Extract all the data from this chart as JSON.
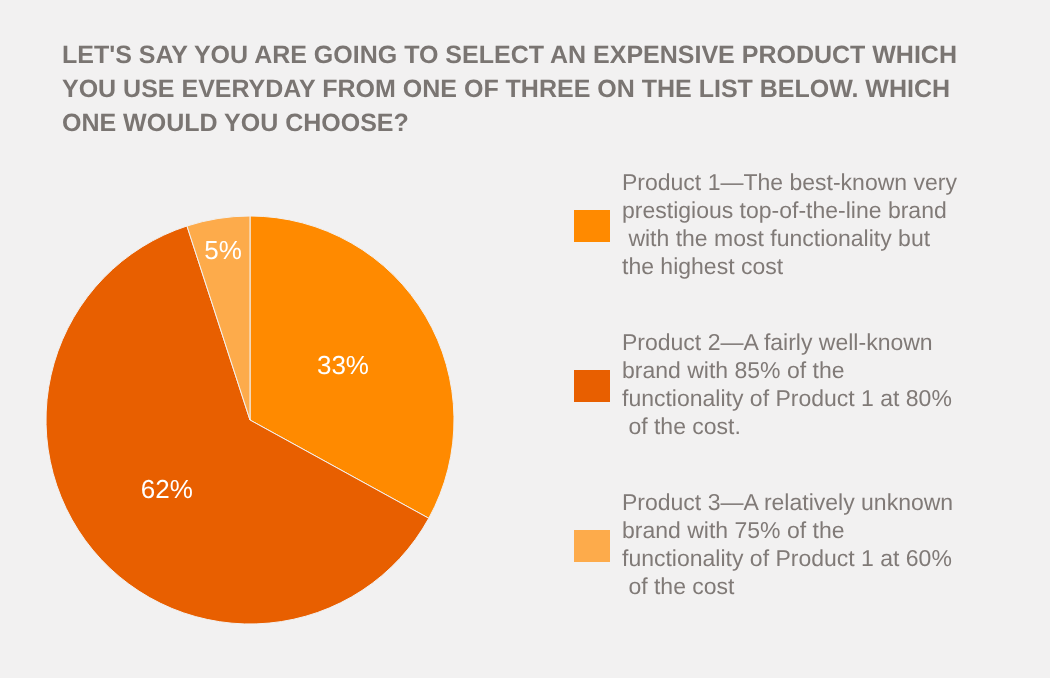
{
  "chart_data": {
    "type": "pie",
    "title": "LET'S SAY YOU ARE GOING TO SELECT AN EXPENSIVE PRODUCT WHICH YOU USE EVERYDAY FROM ONE OF THREE ON THE LIST BELOW. WHICH ONE WOULD YOU CHOOSE?",
    "categories": [
      "Product 1—The best-known very prestigious top-of-the-line brand with the most functionality but the highest cost",
      "Product 2—A fairly well-known brand with 85% of the functionality of Product 1 at 80% of the cost.",
      "Product 3—A relatively unknown brand with 75% of the functionality of Product 1 at 60% of the cost"
    ],
    "values": [
      33,
      62,
      5
    ],
    "colors": [
      "#ff8a00",
      "#e85f00",
      "#fdab4b"
    ],
    "value_labels": [
      "33%",
      "62%",
      "5%"
    ],
    "legend": "right"
  }
}
